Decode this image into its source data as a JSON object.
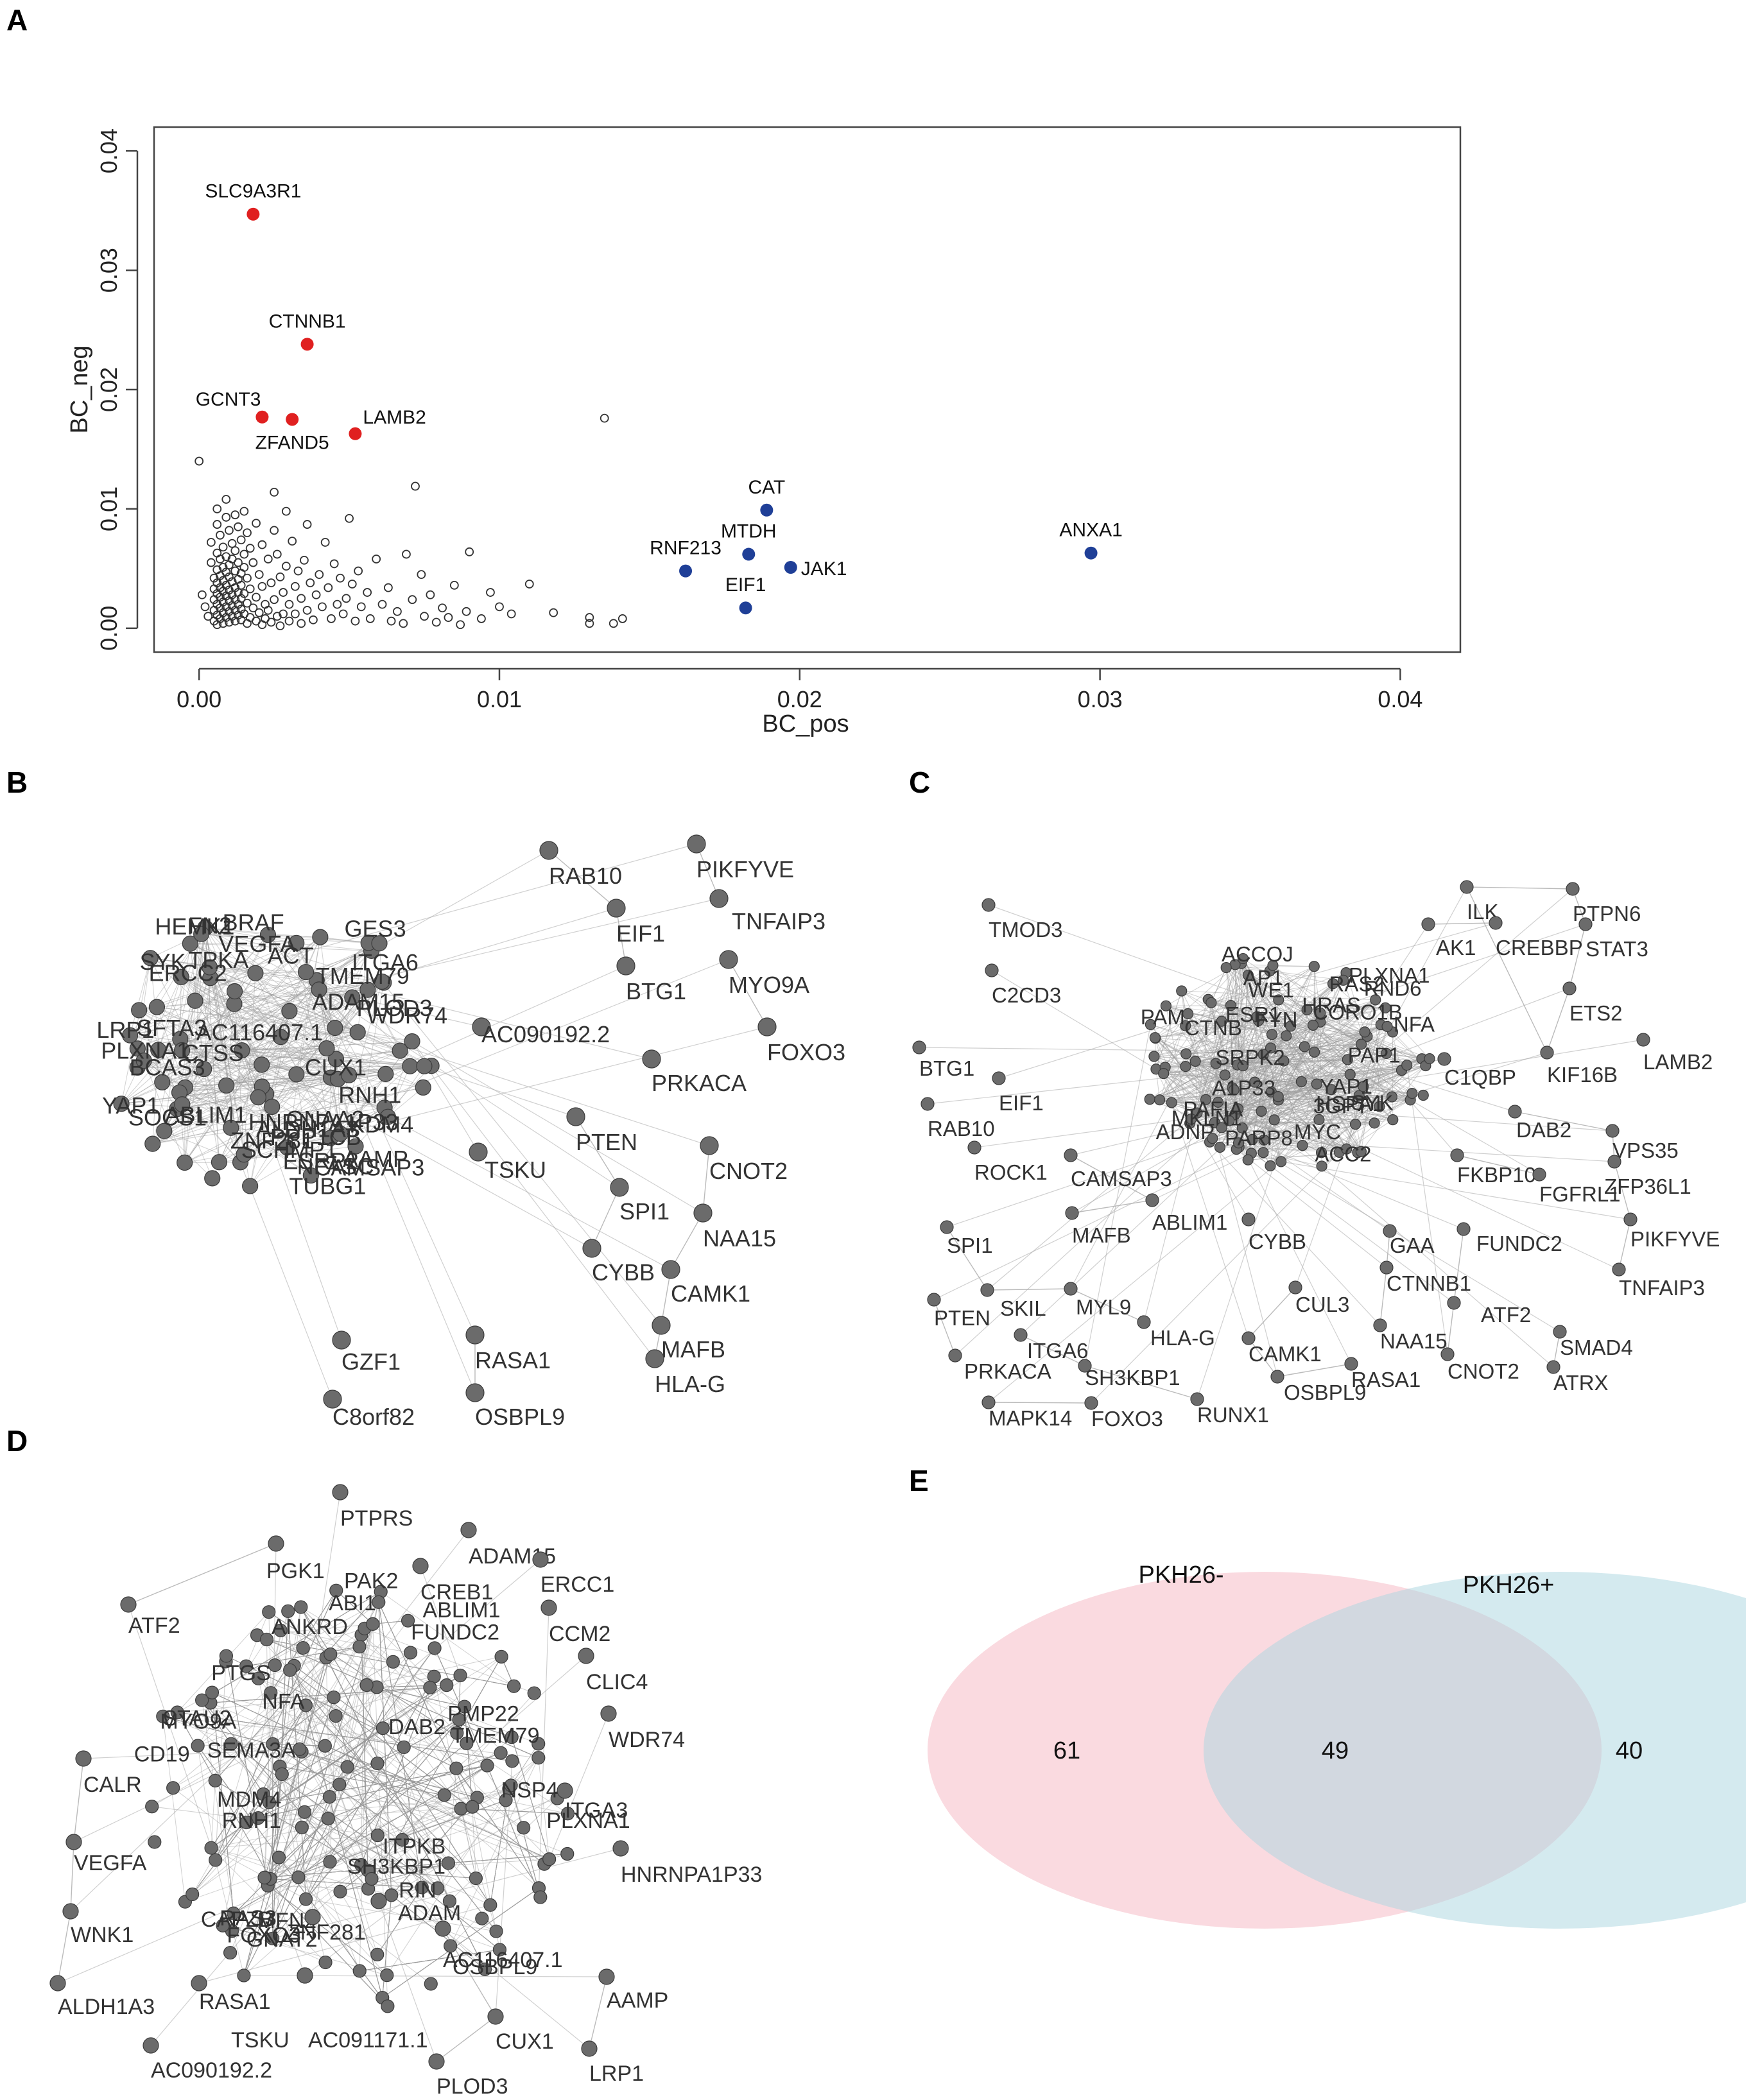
{
  "panels": {
    "a": "A",
    "b": "B",
    "c": "C",
    "d": "D",
    "e": "E"
  },
  "chart_data": [
    {
      "type": "scatter",
      "title": "",
      "xlabel": "BC_pos",
      "ylabel": "BC_neg",
      "xlim": [
        -0.0015,
        0.042
      ],
      "ylim": [
        -0.002,
        0.042
      ],
      "xticks": [
        0.0,
        0.01,
        0.02,
        0.03,
        0.04
      ],
      "xtick_labels": [
        "0.00",
        "0.01",
        "0.02",
        "0.03",
        "0.04"
      ],
      "yticks": [
        0.0,
        0.01,
        0.02,
        0.03,
        0.04
      ],
      "ytick_labels": [
        "0.00",
        "0.01",
        "0.02",
        "0.03",
        "0.04"
      ],
      "colors": {
        "negative_hub": "#e02020",
        "positive_hub": "#1f3f97",
        "other": "#333333"
      },
      "labeled_points": [
        {
          "label": "SLC9A3R1",
          "x": 0.0018,
          "y": 0.0347,
          "group": "negative_hub",
          "side": "above"
        },
        {
          "label": "CTNNB1",
          "x": 0.0036,
          "y": 0.0238,
          "group": "negative_hub",
          "side": "above"
        },
        {
          "label": "GCNT3",
          "x": 0.0021,
          "y": 0.0177,
          "group": "negative_hub",
          "side": "upleft"
        },
        {
          "label": "ZFAND5",
          "x": 0.0031,
          "y": 0.0175,
          "group": "negative_hub",
          "side": "below"
        },
        {
          "label": "LAMB2",
          "x": 0.0052,
          "y": 0.0163,
          "group": "negative_hub",
          "side": "upright"
        },
        {
          "label": "CAT",
          "x": 0.0189,
          "y": 0.0099,
          "group": "positive_hub",
          "side": "above"
        },
        {
          "label": "MTDH",
          "x": 0.0183,
          "y": 0.0062,
          "group": "positive_hub",
          "side": "above"
        },
        {
          "label": "RNF213",
          "x": 0.0162,
          "y": 0.0048,
          "group": "positive_hub",
          "side": "above"
        },
        {
          "label": "JAK1",
          "x": 0.0197,
          "y": 0.0051,
          "group": "positive_hub",
          "side": "right"
        },
        {
          "label": "EIF1",
          "x": 0.0182,
          "y": 0.0017,
          "group": "positive_hub",
          "side": "above"
        },
        {
          "label": "ANXA1",
          "x": 0.0297,
          "y": 0.0063,
          "group": "positive_hub",
          "side": "above"
        }
      ],
      "other_points": [
        [
          0.0,
          0.014
        ],
        [
          0.0001,
          0.0028
        ],
        [
          0.0002,
          0.0018
        ],
        [
          0.0003,
          0.001
        ],
        [
          0.0004,
          0.0072
        ],
        [
          0.0004,
          0.0055
        ],
        [
          0.0005,
          0.0042
        ],
        [
          0.0005,
          0.0033
        ],
        [
          0.0005,
          0.0024
        ],
        [
          0.0005,
          0.0015
        ],
        [
          0.0005,
          0.0006
        ],
        [
          0.0006,
          0.01
        ],
        [
          0.0006,
          0.0087
        ],
        [
          0.0006,
          0.0063
        ],
        [
          0.0006,
          0.0049
        ],
        [
          0.0006,
          0.0038
        ],
        [
          0.0006,
          0.0029
        ],
        [
          0.0006,
          0.002
        ],
        [
          0.0006,
          0.0011
        ],
        [
          0.0006,
          0.0003
        ],
        [
          0.0007,
          0.0078
        ],
        [
          0.0007,
          0.0058
        ],
        [
          0.0007,
          0.0044
        ],
        [
          0.0007,
          0.0034
        ],
        [
          0.0007,
          0.0026
        ],
        [
          0.0007,
          0.0017
        ],
        [
          0.0007,
          0.0008
        ],
        [
          0.0008,
          0.0068
        ],
        [
          0.0008,
          0.0051
        ],
        [
          0.0008,
          0.004
        ],
        [
          0.0008,
          0.0031
        ],
        [
          0.0008,
          0.0022
        ],
        [
          0.0008,
          0.0013
        ],
        [
          0.0008,
          0.0004
        ],
        [
          0.0009,
          0.0108
        ],
        [
          0.0009,
          0.0093
        ],
        [
          0.0009,
          0.006
        ],
        [
          0.0009,
          0.0047
        ],
        [
          0.0009,
          0.0036
        ],
        [
          0.0009,
          0.0027
        ],
        [
          0.0009,
          0.0018
        ],
        [
          0.0009,
          0.0009
        ],
        [
          0.001,
          0.0082
        ],
        [
          0.001,
          0.0053
        ],
        [
          0.001,
          0.0043
        ],
        [
          0.001,
          0.0032
        ],
        [
          0.001,
          0.0023
        ],
        [
          0.001,
          0.0014
        ],
        [
          0.001,
          0.0005
        ],
        [
          0.0011,
          0.0071
        ],
        [
          0.0011,
          0.0058
        ],
        [
          0.0011,
          0.0039
        ],
        [
          0.0011,
          0.0028
        ],
        [
          0.0011,
          0.0019
        ],
        [
          0.0011,
          0.001
        ],
        [
          0.0012,
          0.0095
        ],
        [
          0.0012,
          0.0065
        ],
        [
          0.0012,
          0.0048
        ],
        [
          0.0012,
          0.0034
        ],
        [
          0.0012,
          0.0024
        ],
        [
          0.0012,
          0.0015
        ],
        [
          0.0012,
          0.0006
        ],
        [
          0.0013,
          0.0085
        ],
        [
          0.0013,
          0.0055
        ],
        [
          0.0013,
          0.0041
        ],
        [
          0.0013,
          0.003
        ],
        [
          0.0013,
          0.002
        ],
        [
          0.0013,
          0.0011
        ],
        [
          0.0014,
          0.0074
        ],
        [
          0.0014,
          0.0046
        ],
        [
          0.0014,
          0.0036
        ],
        [
          0.0014,
          0.0025
        ],
        [
          0.0014,
          0.0016
        ],
        [
          0.0014,
          0.0007
        ],
        [
          0.0015,
          0.0098
        ],
        [
          0.0015,
          0.0062
        ],
        [
          0.0015,
          0.0051
        ],
        [
          0.0015,
          0.0029
        ],
        [
          0.0015,
          0.0012
        ],
        [
          0.0016,
          0.008
        ],
        [
          0.0016,
          0.0042
        ],
        [
          0.0016,
          0.0021
        ],
        [
          0.0016,
          0.0004
        ],
        [
          0.0017,
          0.0067
        ],
        [
          0.0017,
          0.0033
        ],
        [
          0.0017,
          0.0009
        ],
        [
          0.0018,
          0.0055
        ],
        [
          0.0018,
          0.0017
        ],
        [
          0.0019,
          0.0088
        ],
        [
          0.0019,
          0.0026
        ],
        [
          0.0019,
          0.0006
        ],
        [
          0.002,
          0.0045
        ],
        [
          0.002,
          0.0013
        ],
        [
          0.0021,
          0.007
        ],
        [
          0.0021,
          0.0035
        ],
        [
          0.0021,
          0.0003
        ],
        [
          0.0022,
          0.002
        ],
        [
          0.0022,
          0.0008
        ],
        [
          0.0023,
          0.0058
        ],
        [
          0.0023,
          0.0015
        ],
        [
          0.0024,
          0.0038
        ],
        [
          0.0024,
          0.0005
        ],
        [
          0.0025,
          0.0114
        ],
        [
          0.0025,
          0.0082
        ],
        [
          0.0025,
          0.0024
        ],
        [
          0.0026,
          0.0062
        ],
        [
          0.0026,
          0.001
        ],
        [
          0.0027,
          0.0043
        ],
        [
          0.0027,
          0.0002
        ],
        [
          0.0028,
          0.003
        ],
        [
          0.0028,
          0.0012
        ],
        [
          0.0029,
          0.0098
        ],
        [
          0.0029,
          0.0052
        ],
        [
          0.003,
          0.002
        ],
        [
          0.003,
          0.0006
        ],
        [
          0.0031,
          0.0073
        ],
        [
          0.0032,
          0.0035
        ],
        [
          0.0032,
          0.0012
        ],
        [
          0.0033,
          0.0048
        ],
        [
          0.0034,
          0.0025
        ],
        [
          0.0034,
          0.0004
        ],
        [
          0.0035,
          0.0057
        ],
        [
          0.0036,
          0.0087
        ],
        [
          0.0036,
          0.0015
        ],
        [
          0.0037,
          0.0038
        ],
        [
          0.0038,
          0.0007
        ],
        [
          0.0039,
          0.0028
        ],
        [
          0.004,
          0.0045
        ],
        [
          0.0041,
          0.0018
        ],
        [
          0.0042,
          0.0072
        ],
        [
          0.0043,
          0.0034
        ],
        [
          0.0044,
          0.0008
        ],
        [
          0.0045,
          0.0054
        ],
        [
          0.0046,
          0.002
        ],
        [
          0.0047,
          0.0042
        ],
        [
          0.0048,
          0.0012
        ],
        [
          0.0049,
          0.0025
        ],
        [
          0.005,
          0.0092
        ],
        [
          0.0051,
          0.0037
        ],
        [
          0.0052,
          0.0006
        ],
        [
          0.0053,
          0.0048
        ],
        [
          0.0054,
          0.0018
        ],
        [
          0.0056,
          0.003
        ],
        [
          0.0057,
          0.0008
        ],
        [
          0.0059,
          0.0058
        ],
        [
          0.0061,
          0.002
        ],
        [
          0.0063,
          0.0034
        ],
        [
          0.0064,
          0.0006
        ],
        [
          0.0066,
          0.0014
        ],
        [
          0.0068,
          0.0004
        ],
        [
          0.0069,
          0.0062
        ],
        [
          0.0071,
          0.0024
        ],
        [
          0.0072,
          0.0119
        ],
        [
          0.0074,
          0.0045
        ],
        [
          0.0075,
          0.001
        ],
        [
          0.0077,
          0.0028
        ],
        [
          0.0079,
          0.0005
        ],
        [
          0.0081,
          0.0017
        ],
        [
          0.0083,
          0.0009
        ],
        [
          0.0085,
          0.0036
        ],
        [
          0.0087,
          0.0003
        ],
        [
          0.0089,
          0.0014
        ],
        [
          0.009,
          0.0064
        ],
        [
          0.0094,
          0.0008
        ],
        [
          0.0097,
          0.003
        ],
        [
          0.01,
          0.0018
        ],
        [
          0.0104,
          0.0012
        ],
        [
          0.011,
          0.0037
        ],
        [
          0.0118,
          0.0013
        ],
        [
          0.013,
          0.0004
        ],
        [
          0.013,
          0.0009
        ],
        [
          0.0135,
          0.0176
        ],
        [
          0.0138,
          0.0004
        ],
        [
          0.0141,
          0.0008
        ]
      ]
    },
    {
      "type": "network",
      "panel": "B",
      "cluster_labels": [
        "CAMSAP3",
        "TMEM79",
        "FN2",
        "SFTA3",
        "SOCS1",
        "TPKA",
        "ABLIM1",
        "NFASC",
        "SCHMP1",
        "ESRP2",
        "VEGFA",
        "PPP1CB",
        "ITGA6",
        "KDM4",
        "ALDH1A3",
        "BCAS3",
        "GNAA2",
        "BRAF",
        "PLXNA1",
        "SYK",
        "CTSS",
        "ZNF281",
        "GES3",
        "YAP1",
        "RNH1",
        "WDR74",
        "ACT",
        "AC116407.1",
        "TUBG1",
        "AAMP",
        "CUX1",
        "HNRNPA1P33",
        "ERCC2",
        "PLOD3",
        "HEMK1",
        "LRP1",
        "ADAM15"
      ],
      "outer_labels": [
        "AC090192.2",
        "TSKU",
        "RAB10",
        "EIF1",
        "BTG1",
        "PIKFYVE",
        "TNFAIP3",
        "MYO9A",
        "FOXO3",
        "PRKACA",
        "PTEN",
        "SPI1",
        "CNOT2",
        "NAA15",
        "CYBB",
        "CAMK1",
        "MAFB",
        "HLA-G",
        "GZF1",
        "C8orf82",
        "RASA1",
        "OSBPL9"
      ]
    },
    {
      "type": "network",
      "panel": "C",
      "cluster_labels": [
        "CORO1B",
        "ADNP",
        "HRAS",
        "MKLN1",
        "SRPK2",
        "ACC2",
        "CTNB",
        "MYC",
        "PLXNA1",
        "SYK",
        "PAM",
        "ESR1",
        "NFA",
        "HSPA1",
        "PAP1",
        "AP1",
        "3GPT",
        "FYN",
        "WE1",
        "A1P33",
        "PAFIA",
        "ACCOJ",
        "PARP8",
        "YAP1",
        "RAS2",
        "RND6"
      ],
      "outer_labels": [
        "TMOD3",
        "C2CD3",
        "ILK",
        "PTPN6",
        "AK1",
        "CREBBP",
        "STAT3",
        "ETS2",
        "KIF16B",
        "LAMB2",
        "BTG1",
        "EIF1",
        "RAB10",
        "ROCK1",
        "CAMSAP3",
        "ABLIM1",
        "MAFB",
        "SPI1",
        "SKIL",
        "MYL9",
        "PTEN",
        "ITGA6",
        "HLA-G",
        "PRKACA",
        "SH3KBP1",
        "MAPK14",
        "FOXO3",
        "RUNX1",
        "CYBB",
        "CUL3",
        "CAMK1",
        "OSBPL9",
        "RASA1",
        "GAA",
        "CTNNB1",
        "FUNDC2",
        "NAA15",
        "ATF2",
        "CNOT2",
        "SMAD4",
        "ATRX",
        "DAB2",
        "VPS35",
        "FKBP10",
        "ZFP36L1",
        "FGFRL1",
        "PIKFYVE",
        "TNFAIP3",
        "C1QBP"
      ]
    },
    {
      "type": "network",
      "panel": "D",
      "cluster_labels": [
        "TMEM79",
        "GNAT2",
        "MDM4",
        "STAU2",
        "PAK2",
        "MFN2",
        "MYO9A",
        "FOXO3",
        "ANKRD",
        "NFA",
        "CAPZB",
        "ABLIM1",
        "PTGS",
        "RIN",
        "ITPKB",
        "DAB2",
        "RNH1",
        "PMP22",
        "SH3KBP1",
        "ABI1",
        "CD19",
        "PLXNA1",
        "SEMA3A",
        "RAS3",
        "NSP4",
        "FUNDC2",
        "OSBPL9"
      ],
      "outer_labels": [
        "PTPRS",
        "PGK1",
        "ADAM15",
        "CREB1",
        "ERCC1",
        "ATF2",
        "CCM2",
        "CLIC4",
        "WDR74",
        "CALR",
        "ITGA3",
        "VEGFA",
        "HNRNPA1P33",
        "WNK1",
        "ALDH1A3",
        "RASA1",
        "TSKU",
        "AC091171.1",
        "AC116407.1",
        "AAMP",
        "CUX1",
        "LRP1",
        "PLOD3",
        "AC090192.2",
        "ZNF281",
        "ADAM"
      ]
    },
    {
      "type": "venn",
      "sets": [
        {
          "name": "PKH26-",
          "only_count": "61",
          "color": "#f4a6b4"
        },
        {
          "name": "PKH26+",
          "only_count": "40",
          "color": "#a9d5e0"
        }
      ],
      "intersection_count": "49"
    }
  ]
}
